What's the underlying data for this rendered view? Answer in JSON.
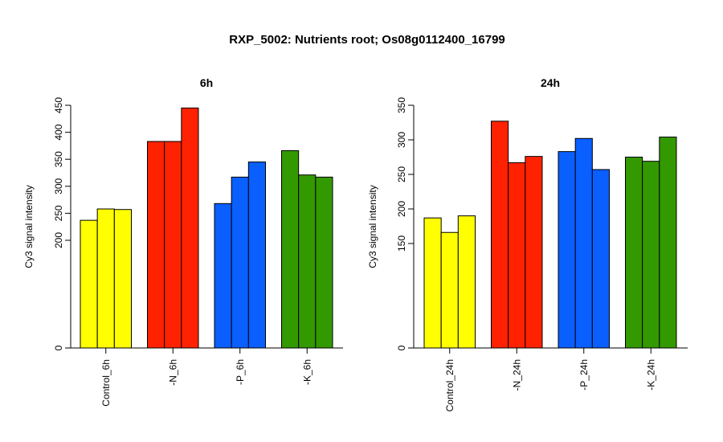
{
  "title": "RXP_5002: Nutrients root; Os08g0112400_16799",
  "chart_data": [
    {
      "type": "bar",
      "title": "6h",
      "ylabel": "Cy3 signal intensity",
      "y_ticks": [
        0,
        200,
        250,
        300,
        350,
        400,
        450
      ],
      "y_breakpoint": 200,
      "groups": [
        {
          "label": "Control_6h",
          "color": "#ffff00",
          "values": [
            237,
            258,
            257
          ]
        },
        {
          "label": "-N_6h",
          "color": "#ff2200",
          "values": [
            383,
            383,
            445
          ]
        },
        {
          "label": "-P_6h",
          "color": "#0a5fff",
          "values": [
            268,
            317,
            345
          ]
        },
        {
          "label": "-K_6h",
          "color": "#339900",
          "values": [
            366,
            321,
            317
          ]
        }
      ]
    },
    {
      "type": "bar",
      "title": "24h",
      "ylabel": "Cy3 signal intensity",
      "y_ticks": [
        0,
        150,
        200,
        250,
        300,
        350
      ],
      "y_breakpoint": 150,
      "groups": [
        {
          "label": "Control_24h",
          "color": "#ffff00",
          "values": [
            187,
            166,
            190
          ]
        },
        {
          "label": "-N_24h",
          "color": "#ff2200",
          "values": [
            327,
            267,
            276
          ]
        },
        {
          "label": "-P_24h",
          "color": "#0a5fff",
          "values": [
            283,
            302,
            257
          ]
        },
        {
          "label": "-K_24h",
          "color": "#339900",
          "values": [
            275,
            269,
            304
          ]
        }
      ]
    }
  ]
}
